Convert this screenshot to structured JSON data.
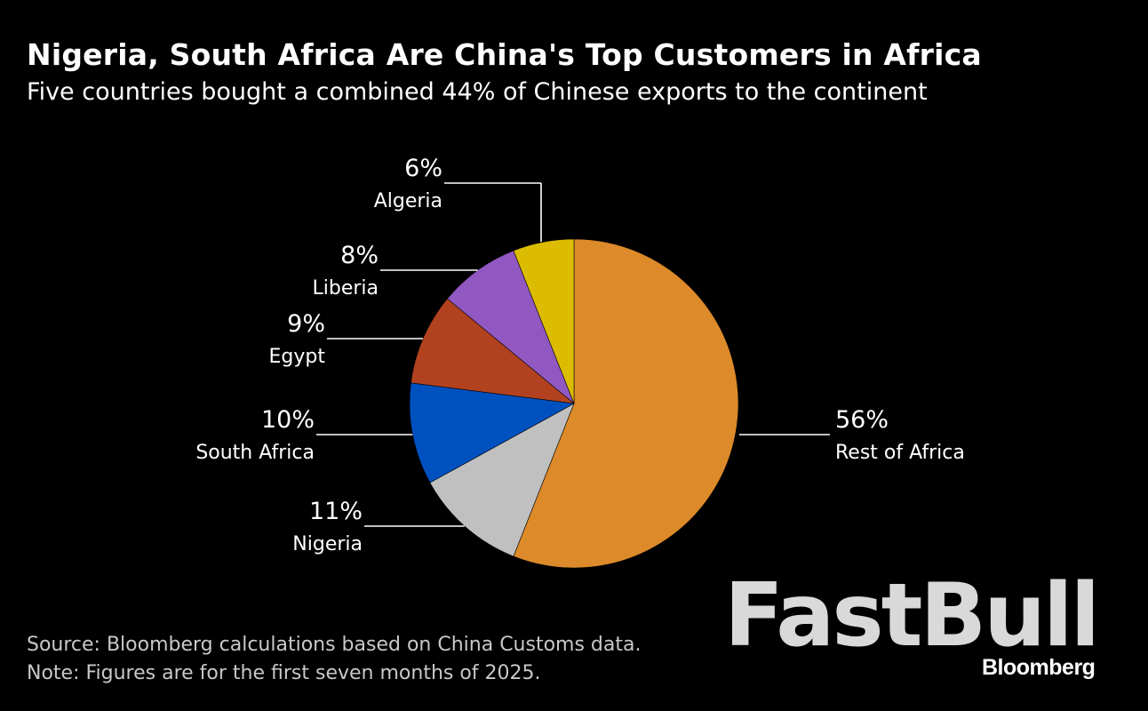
{
  "title": "Nigeria, South Africa Are China's Top Customers in Africa",
  "subtitle": "Five countries bought a combined 44% of Chinese exports to the continent",
  "chart_data": {
    "type": "pie",
    "slices": [
      {
        "label": "Rest of Africa",
        "value": 56,
        "value_label": "56%",
        "color": "#dc8a2a"
      },
      {
        "label": "Nigeria",
        "value": 11,
        "value_label": "11%",
        "color": "#c0c0c0"
      },
      {
        "label": "South Africa",
        "value": 10,
        "value_label": "10%",
        "color": "#0051c0"
      },
      {
        "label": "Egypt",
        "value": 9,
        "value_label": "9%",
        "color": "#b2421f"
      },
      {
        "label": "Liberia",
        "value": 8,
        "value_label": "8%",
        "color": "#9058c0"
      },
      {
        "label": "Algeria",
        "value": 6,
        "value_label": "6%",
        "color": "#dcbc00"
      }
    ]
  },
  "footer": {
    "source": "Source: Bloomberg calculations based on China Customs data.",
    "note": "Note: Figures are for the first seven months of 2025."
  },
  "watermark": "FastBull",
  "brand": "Bloomberg"
}
